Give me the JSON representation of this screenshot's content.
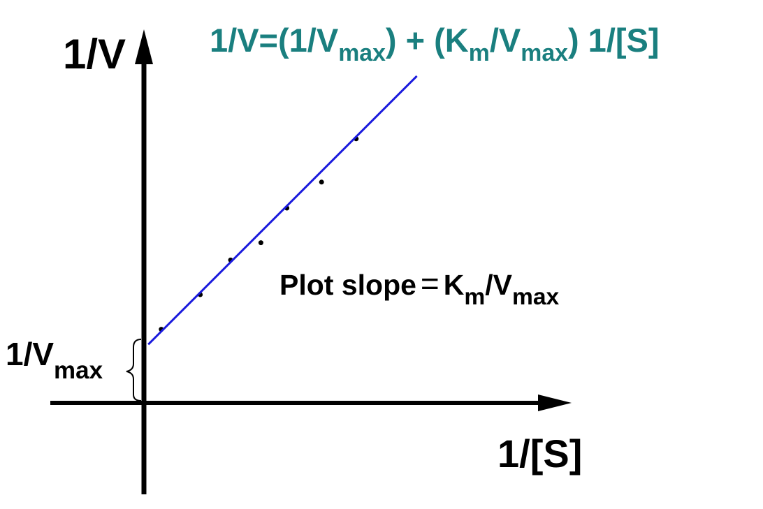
{
  "equation": {
    "prefix": "1/V=(1/V",
    "sub1": "max",
    "mid": ") + (K",
    "sub2": "m",
    "mid2": "/V",
    "sub3": "max",
    "suffix": ") 1/[S]"
  },
  "y_axis_label": "1/V",
  "x_axis_label": "1/[S]",
  "intercept_label": {
    "base": "1/V",
    "sub": "max"
  },
  "slope_label": {
    "prefix": "Plot slope",
    "equals": "=",
    "k": "K",
    "k_sub": "m",
    "v": "/V",
    "v_sub": "max"
  },
  "colors": {
    "equation": "#1a7f7f",
    "fit_line": "#1a1add",
    "axes": "#000000",
    "points": "#000000"
  },
  "chart_data": {
    "type": "scatter",
    "title": "",
    "xlabel": "1/[S]",
    "ylabel": "1/V",
    "x": [
      0.04,
      0.13,
      0.2,
      0.27,
      0.33,
      0.41,
      0.49
    ],
    "y": [
      0.17,
      0.25,
      0.33,
      0.37,
      0.45,
      0.51,
      0.61
    ],
    "fit": {
      "intercept": 0.125,
      "slope": 1.0,
      "x_range": [
        0.01,
        0.63
      ]
    },
    "xlim": [
      -0.22,
      0.98
    ],
    "ylim": [
      -0.22,
      1.0
    ],
    "grid": false,
    "legend": "none"
  }
}
